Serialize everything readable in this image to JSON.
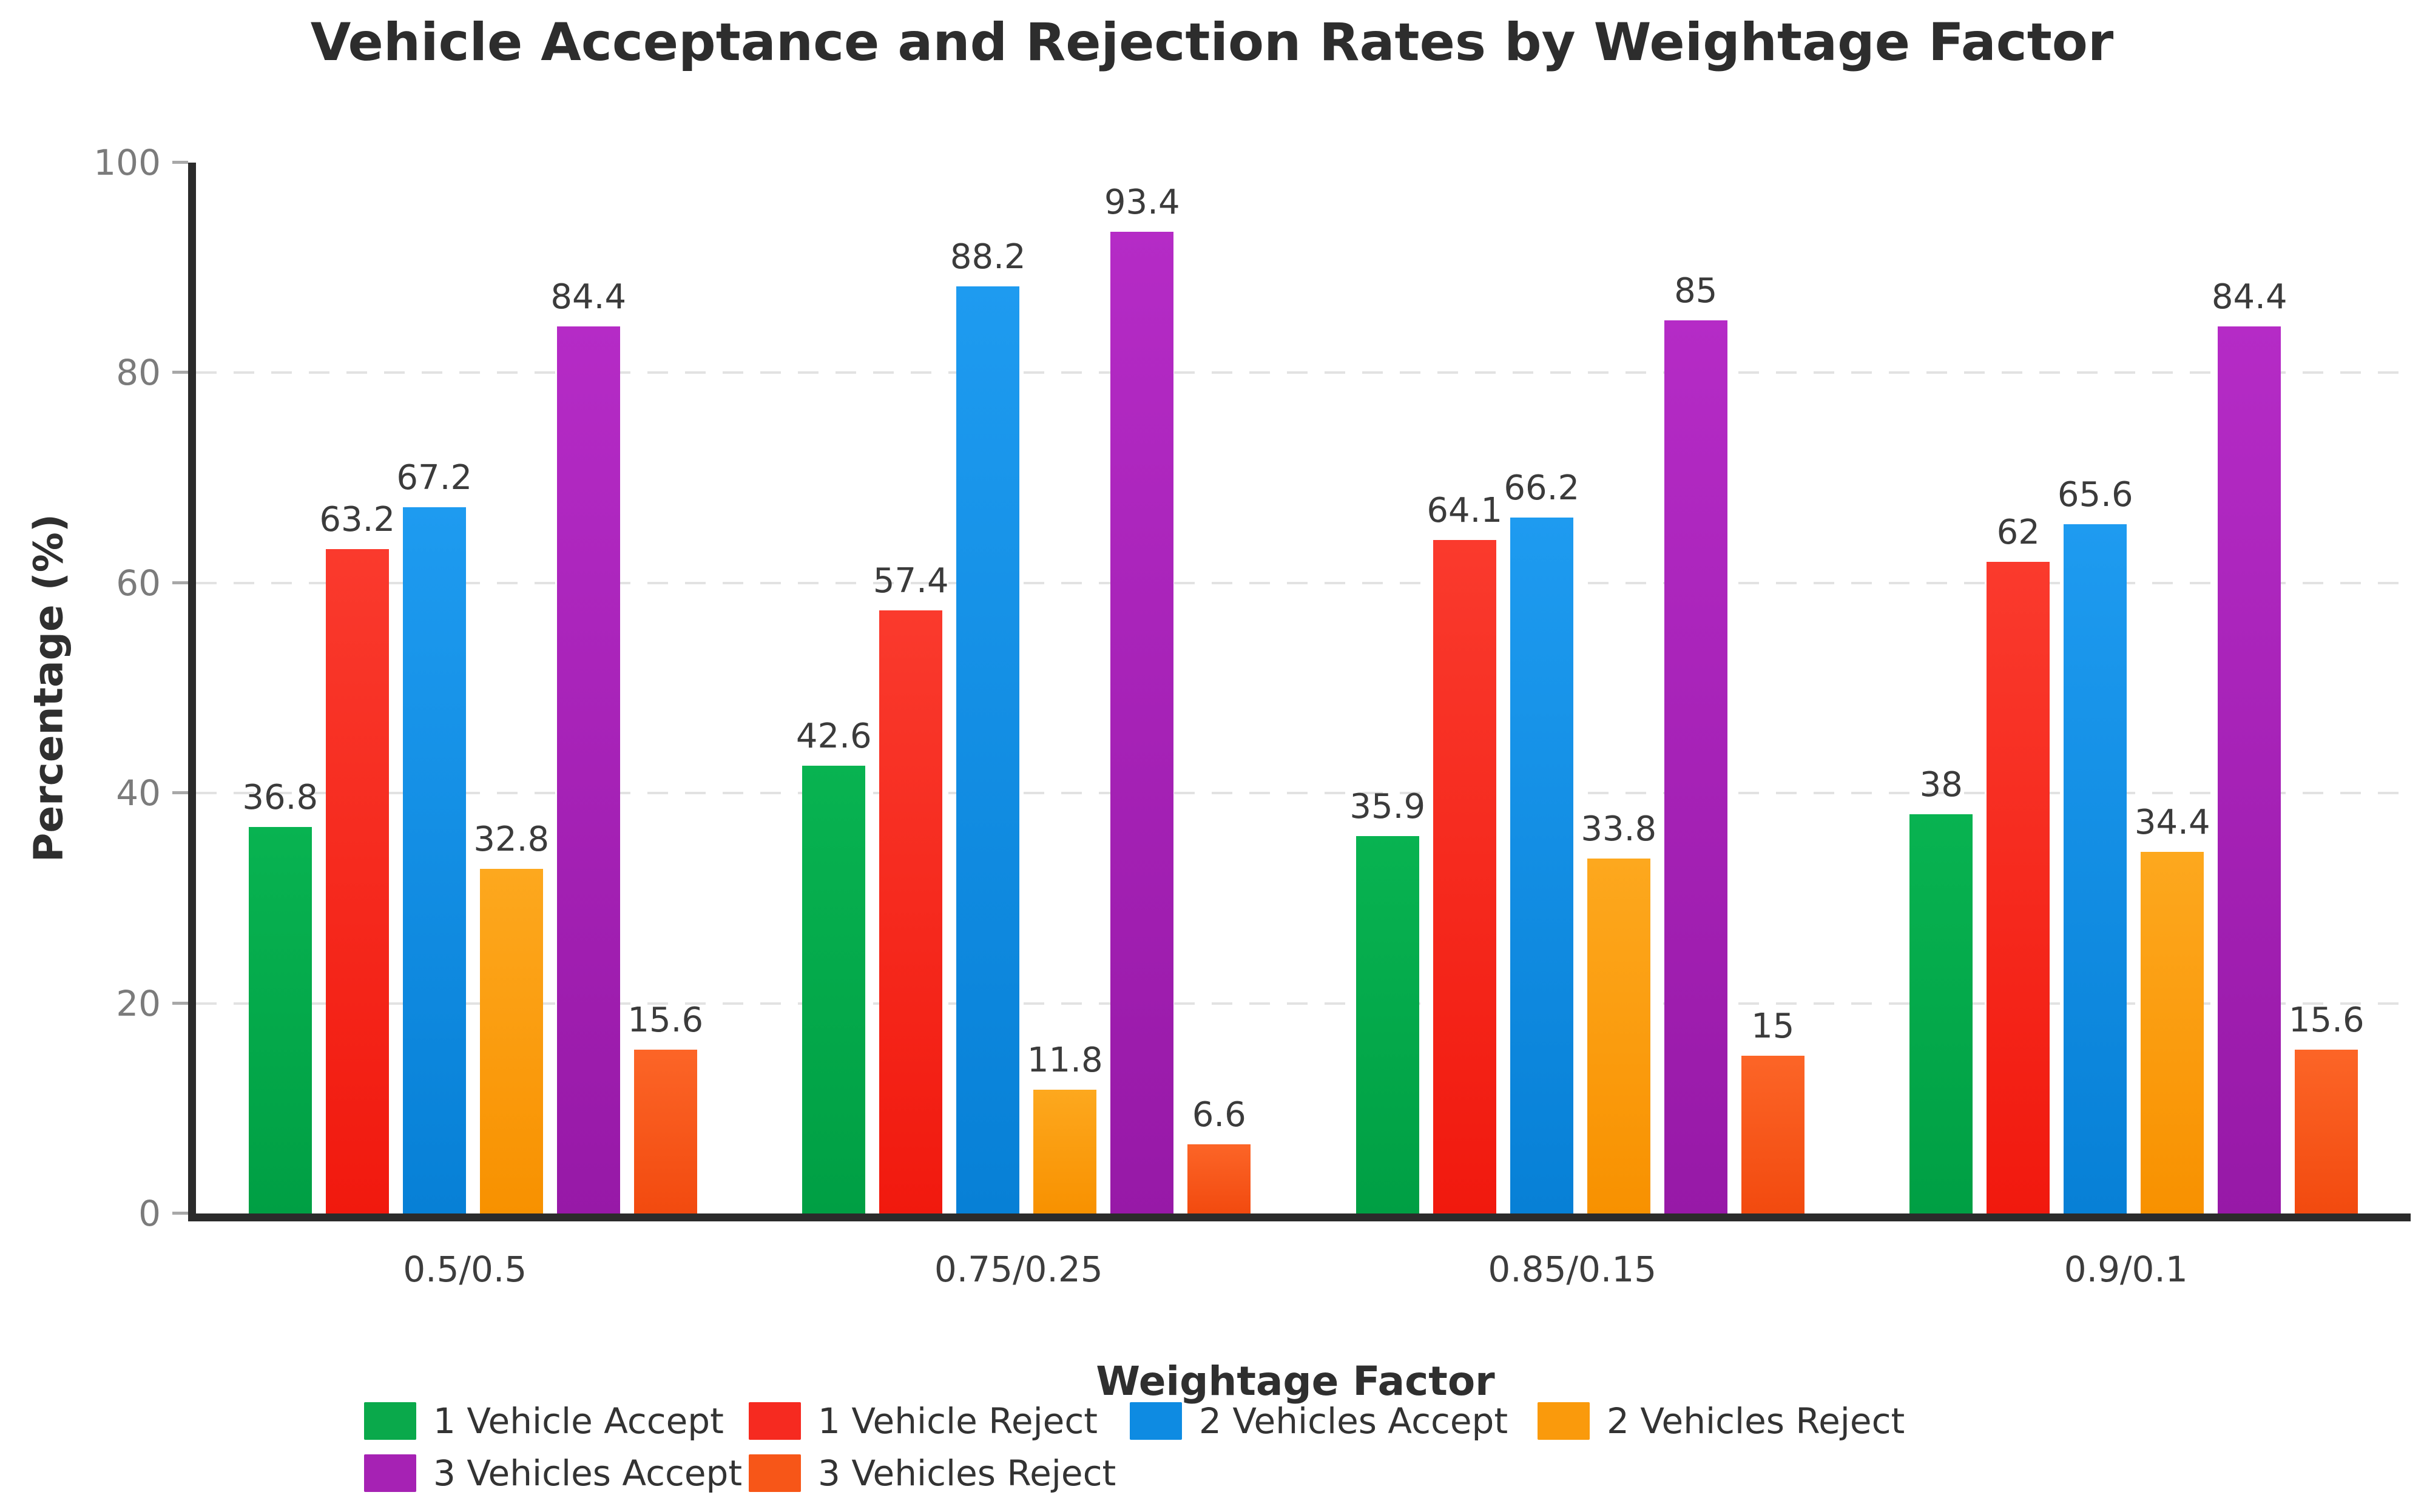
{
  "chart_data": {
    "type": "bar",
    "title": "Vehicle Acceptance and Rejection Rates by Weightage Factor",
    "xlabel": "Weightage Factor",
    "ylabel": "Percentage (%)",
    "ylim": [
      0,
      100
    ],
    "yticks": [
      0,
      20,
      40,
      60,
      80,
      100
    ],
    "grid": "horizontal-dashed",
    "gridline_levels": [
      20,
      40,
      60,
      80
    ],
    "legend_position": "bottom",
    "categories": [
      "0.5/0.5",
      "0.75/0.25",
      "0.85/0.15",
      "0.9/0.1"
    ],
    "series": [
      {
        "name": "1 Vehicle Accept",
        "color": "#0aa94b",
        "color_top": "#08b351",
        "color_bottom": "#009f44",
        "values": [
          36.8,
          42.6,
          35.9,
          38
        ]
      },
      {
        "name": "1 Vehicle Reject",
        "color": "#f62a20",
        "color_top": "#fa3a2d",
        "color_bottom": "#f1190e",
        "values": [
          63.2,
          57.4,
          64.1,
          62
        ]
      },
      {
        "name": "2 Vehicles Accept",
        "color": "#0e8be2",
        "color_top": "#1e9bf0",
        "color_bottom": "#0780d6",
        "values": [
          67.2,
          88.2,
          66.2,
          65.6
        ]
      },
      {
        "name": "2 Vehicles Reject",
        "color": "#fa9a0c",
        "color_top": "#fda81e",
        "color_bottom": "#f89100",
        "values": [
          32.8,
          11.8,
          33.8,
          34.4
        ]
      },
      {
        "name": "3 Vehicles Accept",
        "color": "#a622b4",
        "color_top": "#b52bc6",
        "color_bottom": "#9719a7",
        "values": [
          84.4,
          93.4,
          85,
          84.4
        ]
      },
      {
        "name": "3 Vehicles Reject",
        "color": "#f75618",
        "color_top": "#fc6527",
        "color_bottom": "#f24a0f",
        "values": [
          15.6,
          6.6,
          15,
          15.6
        ]
      }
    ],
    "colors_meta": {
      "title_text": "#2d2d2d",
      "axis_line": "#2b2b2b",
      "y_tick_text": "#7b7b7b",
      "x_tick_text": "#3d3d3d",
      "value_label_text": "#3b3b3b",
      "gridline": "#e2e2e2",
      "background": "#ffffff"
    }
  }
}
